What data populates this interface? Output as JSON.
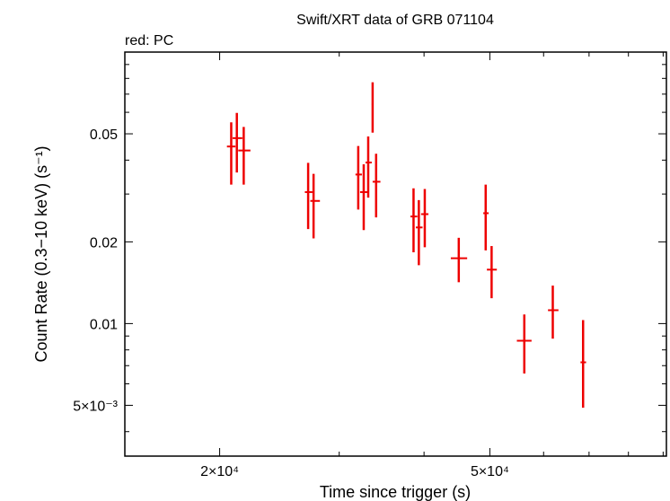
{
  "chart_data": {
    "type": "scatter",
    "title": "Swift/XRT data of GRB 071104",
    "subtitle": "red: PC",
    "xlabel": "Time since trigger (s)",
    "ylabel": "Count Rate (0.3−10 keV) (s⁻¹)",
    "x_scale": "log",
    "y_scale": "log",
    "xlim": [
      14500,
      91000
    ],
    "ylim": [
      0.00325,
      0.1
    ],
    "x_ticks": [
      {
        "value": 20000,
        "label": "2×10⁴"
      },
      {
        "value": 50000,
        "label": "5×10⁴"
      }
    ],
    "y_ticks": [
      {
        "value": 0.005,
        "label": "5×10⁻³"
      },
      {
        "value": 0.01,
        "label": "0.01"
      },
      {
        "value": 0.02,
        "label": "0.02"
      },
      {
        "value": 0.05,
        "label": "0.05"
      }
    ],
    "grid": false,
    "series": [
      {
        "color": "#ee0000",
        "points": [
          {
            "x": 20800,
            "xlo": 20500,
            "xhi": 21100,
            "y": 0.0449,
            "ylo": 0.0325,
            "yhi": 0.0551
          },
          {
            "x": 21200,
            "xlo": 20900,
            "xhi": 21600,
            "y": 0.0482,
            "ylo": 0.036,
            "yhi": 0.0597
          },
          {
            "x": 21700,
            "xlo": 21300,
            "xhi": 22200,
            "y": 0.0434,
            "ylo": 0.0325,
            "yhi": 0.053
          },
          {
            "x": 27000,
            "xlo": 26700,
            "xhi": 27400,
            "y": 0.0305,
            "ylo": 0.0223,
            "yhi": 0.0391
          },
          {
            "x": 27500,
            "xlo": 27200,
            "xhi": 28100,
            "y": 0.0283,
            "ylo": 0.0206,
            "yhi": 0.0356
          },
          {
            "x": 32000,
            "xlo": 31700,
            "xhi": 32400,
            "y": 0.0354,
            "ylo": 0.0263,
            "yhi": 0.0451
          },
          {
            "x": 32600,
            "xlo": 32200,
            "xhi": 33100,
            "y": 0.0305,
            "ylo": 0.0221,
            "yhi": 0.0386
          },
          {
            "x": 33100,
            "xlo": 32800,
            "xhi": 33500,
            "y": 0.0392,
            "ylo": 0.0291,
            "yhi": 0.0489
          },
          {
            "x": 33600,
            "xlo": 33500,
            "xhi": 33700,
            "y": 0.0642,
            "ylo": 0.0505,
            "yhi": 0.0774
          },
          {
            "x": 34000,
            "xlo": 33600,
            "xhi": 34500,
            "y": 0.0333,
            "ylo": 0.0246,
            "yhi": 0.0422
          },
          {
            "x": 38600,
            "xlo": 38200,
            "xhi": 39100,
            "y": 0.0248,
            "ylo": 0.0183,
            "yhi": 0.0315
          },
          {
            "x": 39300,
            "xlo": 38900,
            "xhi": 39800,
            "y": 0.0226,
            "ylo": 0.0164,
            "yhi": 0.0285
          },
          {
            "x": 40100,
            "xlo": 39600,
            "xhi": 40600,
            "y": 0.0253,
            "ylo": 0.0191,
            "yhi": 0.0313
          },
          {
            "x": 45000,
            "xlo": 43800,
            "xhi": 46300,
            "y": 0.0174,
            "ylo": 0.0142,
            "yhi": 0.0207
          },
          {
            "x": 49300,
            "xlo": 48900,
            "xhi": 49800,
            "y": 0.0255,
            "ylo": 0.0186,
            "yhi": 0.0325
          },
          {
            "x": 50300,
            "xlo": 49500,
            "xhi": 51200,
            "y": 0.0158,
            "ylo": 0.0124,
            "yhi": 0.0193
          },
          {
            "x": 56200,
            "xlo": 54800,
            "xhi": 57600,
            "y": 0.00865,
            "ylo": 0.00655,
            "yhi": 0.0108
          },
          {
            "x": 61900,
            "xlo": 60900,
            "xhi": 63100,
            "y": 0.0112,
            "ylo": 0.0088,
            "yhi": 0.0138
          },
          {
            "x": 68600,
            "xlo": 68000,
            "xhi": 69300,
            "y": 0.0072,
            "ylo": 0.0049,
            "yhi": 0.0103
          }
        ]
      }
    ]
  }
}
